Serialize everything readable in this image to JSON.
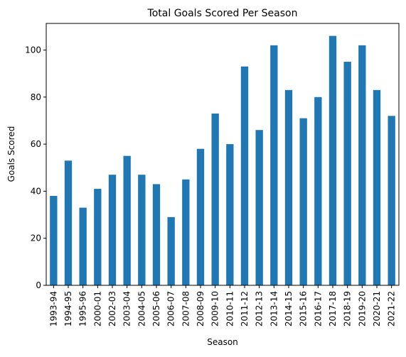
{
  "chart_data": {
    "type": "bar",
    "title": "Total Goals Scored Per Season",
    "xlabel": "Season",
    "ylabel": "Goals Scored",
    "categories": [
      "1993-94",
      "1994-95",
      "1995-96",
      "2000-01",
      "2002-03",
      "2003-04",
      "2004-05",
      "2005-06",
      "2006-07",
      "2007-08",
      "2008-09",
      "2009-10",
      "2010-11",
      "2011-12",
      "2012-13",
      "2013-14",
      "2014-15",
      "2015-16",
      "2016-17",
      "2017-18",
      "2018-19",
      "2019-20",
      "2020-21",
      "2021-22"
    ],
    "values": [
      38,
      53,
      33,
      41,
      47,
      55,
      47,
      43,
      29,
      45,
      58,
      73,
      60,
      93,
      66,
      102,
      83,
      71,
      80,
      106,
      95,
      102,
      83,
      72
    ],
    "ylim": [
      0,
      111.3
    ],
    "yticks": [
      0,
      20,
      40,
      60,
      80,
      100
    ],
    "bar_color": "#1f77b4",
    "grid": false,
    "legend": "none"
  }
}
